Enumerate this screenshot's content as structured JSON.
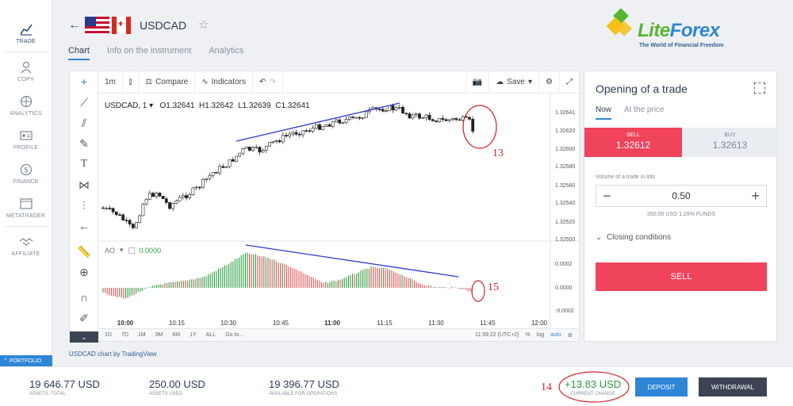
{
  "nav": {
    "items": [
      {
        "label": "TRADE",
        "icon": "chart-icon"
      },
      {
        "label": "COPY",
        "icon": "users-icon"
      },
      {
        "label": "ANALYTICS",
        "icon": "globe-icon"
      },
      {
        "label": "PROFILE",
        "icon": "id-card-icon"
      },
      {
        "label": "FINANCE",
        "icon": "dollar-icon"
      },
      {
        "label": "METATRADER",
        "icon": "window-icon"
      },
      {
        "label": "AFFILIATE",
        "icon": "handshake-icon"
      }
    ],
    "portfolio": "PORTFOLIO"
  },
  "header": {
    "symbol": "USDCAD",
    "tabs": [
      "Chart",
      "Info on the instrument",
      "Analytics"
    ]
  },
  "logo": {
    "word1": "Lite",
    "word2": "Forex",
    "tagline": "The World of Financial Freedom"
  },
  "toolbar": {
    "interval": "1m",
    "compare": "Compare",
    "indicators": "Indicators",
    "save": "Save"
  },
  "legend": {
    "name": "USDCAD, 1",
    "o": "O1.32641",
    "h": "H1.32642",
    "l": "L1.32639",
    "c": "C1.32641"
  },
  "ao": {
    "name": "AO",
    "value": "0.0000"
  },
  "bottombar": {
    "ranges": [
      "1D",
      "7D",
      "1M",
      "3M",
      "6M",
      "1Y",
      "ALL",
      "Go to..."
    ],
    "time": "11:39:22 (UTC+2)",
    "pct": "%",
    "log": "log",
    "auto": "auto"
  },
  "credit": "USDCAD chart by TradingView",
  "panel": {
    "title": "Opening of a trade",
    "tabs": [
      "Now",
      "At the price"
    ],
    "sell_label": "SELL",
    "sell_price": "1.32612",
    "buy_label": "BUY",
    "buy_price": "1.32613",
    "volume_label": "Volume of a trade in lots",
    "volume": "0.50",
    "funds": "250.00 USD  1.29% FUNDS",
    "closing": "Closing conditions",
    "sell_button": "SELL"
  },
  "footer": {
    "assets_total": {
      "value": "19 646.77 USD",
      "caption": "ASSETS, TOTAL"
    },
    "assets_used": {
      "value": "250.00 USD",
      "caption": "ASSETS USED"
    },
    "available": {
      "value": "19 396.77 USD",
      "caption": "AVAILABLE FOR OPERATIONS"
    },
    "change": {
      "value": "+13.83 USD",
      "caption": "CURRENT CHANGE"
    },
    "deposit": "DEPOSIT",
    "withdrawal": "WITHDRAWAL"
  },
  "annotations": {
    "a13": "13",
    "a14": "14",
    "a15": "15"
  },
  "colors": {
    "up": "#ffffff",
    "down": "#222222",
    "ao_up": "#2a9d3e",
    "ao_down": "#e0525b",
    "trend": "#2d3bd6",
    "sell": "#f0435c",
    "accent": "#2f86d6"
  },
  "chart_data": {
    "type": "candlestick",
    "price_axis": [
      "1.32641",
      "1.32620",
      "1.32600",
      "1.32580",
      "1.32560",
      "1.32540",
      "1.32520",
      "1.32500"
    ],
    "ao_axis": [
      "0.0002",
      "0.0000",
      "-0.0002"
    ],
    "time_axis": [
      "10:00",
      "10:15",
      "10:30",
      "10:45",
      "11:00",
      "11:15",
      "11:30",
      "11:45",
      "12:00"
    ],
    "ylim": [
      1.325,
      1.3265
    ]
  }
}
